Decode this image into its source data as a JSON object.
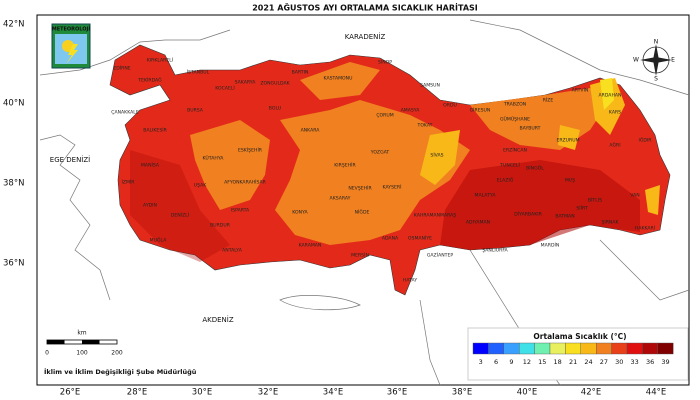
{
  "title": "2021 AĞUSTOS AYI ORTALAMA SICAKLIK HARİTASI",
  "logo": "METEOROLOJİ",
  "latitude_labels": [
    "42°N",
    "40°N",
    "38°N",
    "36°N"
  ],
  "longitude_labels": [
    "26°E",
    "28°E",
    "30°E",
    "32°E",
    "34°E",
    "36°E",
    "38°E",
    "40°E",
    "42°E",
    "44°E"
  ],
  "seas": [
    "KARADENİZ",
    "EGE DENİZİ",
    "AKDENİZ"
  ],
  "compass": [
    "N",
    "E",
    "S",
    "W"
  ],
  "provinces": [
    "EDİRNE",
    "KIRKLARELİ",
    "TEKİRDAĞ",
    "İSTANBUL",
    "KOCAELİ",
    "SAKARYA",
    "ZONGULDAK",
    "BARTIN",
    "KASTAMONU",
    "SİNOP",
    "SAMSUN",
    "ORDU",
    "GİRESUN",
    "TRABZON",
    "RİZE",
    "ARTVİN",
    "ARDAHAN",
    "KARS",
    "IĞDIR",
    "AĞRI",
    "ERZURUM",
    "BAYBURT",
    "GÜMÜŞHANE",
    "ERZİNCAN",
    "TOKAT",
    "AMASYA",
    "ÇORUM",
    "YOZGAT",
    "SİVAS",
    "KAYSERİ",
    "NEVŞEHİR",
    "KIRŞEHİR",
    "AKSARAY",
    "NİĞDE",
    "ANKARA",
    "BOLU",
    "ESKİŞEHİR",
    "BURSA",
    "BALIKESİR",
    "ÇANAKKALE",
    "KÜTAHYA",
    "MANİSA",
    "İZMİR",
    "UŞAK",
    "AFYONKARAHİSAR",
    "DENİZLİ",
    "AYDIN",
    "MUĞLA",
    "BURDUR",
    "ISPARTA",
    "ANTALYA",
    "KONYA",
    "KARAMAN",
    "MERSİN",
    "ADANA",
    "OSMANİYE",
    "KAHRAMANMARAŞ",
    "GAZİANTEP",
    "HATAY",
    "MALATYA",
    "ELAZIĞ",
    "TUNCELİ",
    "BİNGÖL",
    "MUŞ",
    "BİTLİS",
    "VAN",
    "HAKKARİ",
    "ŞIRNAK",
    "SİİRT",
    "BATMAN",
    "MARDİN",
    "DİYARBAKIR",
    "ŞANLIURFA",
    "ADIYAMAN"
  ],
  "scale": {
    "unit": "km",
    "labels": [
      0,
      100,
      200
    ]
  },
  "legend": {
    "title": "Ortalama Sıcaklık (°C)",
    "ticks": [
      3,
      6,
      9,
      12,
      15,
      18,
      21,
      24,
      27,
      30,
      33,
      36,
      39
    ],
    "colors": [
      "#0000ff",
      "#2060ff",
      "#3aa0ff",
      "#40e0e8",
      "#70f0b0",
      "#e8f060",
      "#f8e020",
      "#f8b818",
      "#f08020",
      "#e84018",
      "#e01010",
      "#b00808",
      "#800000"
    ]
  },
  "footer": "İklim ve İklim Değişikliği Şube Müdürlüğü"
}
